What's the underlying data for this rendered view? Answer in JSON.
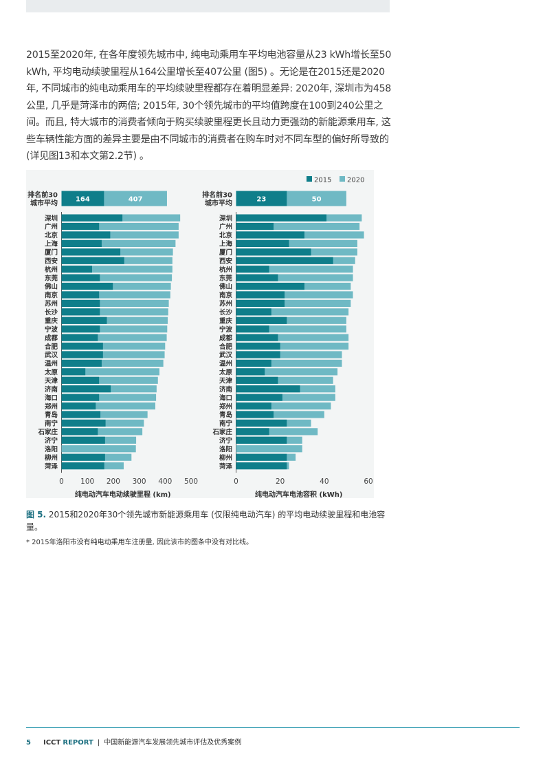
{
  "paragraph": "2015至2020年, 在各年度领先城市中, 纯电动乘用车平均电池容量从23 kWh增长至50 kWh, 平均电动续驶里程从164公里增长至407公里 (图5) 。无论是在2015还是2020年, 不同城市的纯电动乘用车的平均续驶里程都存在着明显差异: 2020年, 深圳市为458公里, 几乎是菏泽市的两倍; 2015年, 30个领先城市的平均值跨度在100到240公里之间。而且, 特大城市的消费者倾向于购买续驶里程更长且动力更强劲的新能源乘用车, 这些车辆性能方面的差异主要是由不同城市的消费者在购车时对不同车型的偏好所导致的 (详见图13和本文第2.2节) 。",
  "colors": {
    "y2015": "#0f7e8a",
    "y2020": "#6fb9c4",
    "accent": "#1b6f80"
  },
  "chart_data": [
    {
      "type": "bar",
      "orientation": "horizontal",
      "overlay": true,
      "legend": [
        "2015",
        "2020"
      ],
      "legend_position": "top-right",
      "summary_label": "排名前30城市平均",
      "summary": {
        "2015": 164,
        "2020": 407
      },
      "xlabel": "纯电动汽车电动续驶里程 (km)",
      "ticks": [
        "0",
        "100",
        "200",
        "300",
        "400",
        "500"
      ],
      "xlim": [
        0,
        500
      ],
      "categories": [
        "深圳",
        "广州",
        "北京",
        "上海",
        "厦门",
        "西安",
        "杭州",
        "东莞",
        "佛山",
        "南京",
        "苏州",
        "长沙",
        "重庆",
        "宁波",
        "成都",
        "合肥",
        "武汉",
        "温州",
        "太原",
        "天津",
        "济南",
        "海口",
        "郑州",
        "青岛",
        "南宁",
        "石家庄",
        "济宁",
        "洛阳",
        "柳州",
        "菏泽"
      ],
      "series": [
        {
          "name": "2015",
          "values": [
            235,
            145,
            188,
            155,
            227,
            242,
            118,
            148,
            198,
            145,
            148,
            148,
            175,
            148,
            140,
            160,
            160,
            155,
            92,
            145,
            190,
            145,
            132,
            150,
            170,
            140,
            168,
            null,
            168,
            165
          ]
        },
        {
          "name": "2020",
          "values": [
            458,
            452,
            452,
            440,
            430,
            428,
            428,
            426,
            422,
            420,
            414,
            412,
            410,
            408,
            406,
            400,
            398,
            393,
            378,
            372,
            367,
            365,
            362,
            332,
            318,
            312,
            288,
            287,
            270,
            240
          ]
        }
      ]
    },
    {
      "type": "bar",
      "orientation": "horizontal",
      "overlay": true,
      "legend": [
        "2015",
        "2020"
      ],
      "summary_label": "排名前30城市平均",
      "summary": {
        "2015": 23,
        "2020": 50
      },
      "xlabel": "纯电动汽车电池容积 (kWh)",
      "ticks": [
        "0",
        "20",
        "40",
        "60"
      ],
      "xlim": [
        0,
        60
      ],
      "categories": [
        "深圳",
        "广州",
        "北京",
        "上海",
        "厦门",
        "西安",
        "杭州",
        "东莞",
        "佛山",
        "南京",
        "苏州",
        "长沙",
        "重庆",
        "宁波",
        "成都",
        "合肥",
        "武汉",
        "温州",
        "太原",
        "天津",
        "济南",
        "海口",
        "郑州",
        "青岛",
        "南宁",
        "石家庄",
        "济宁",
        "洛阳",
        "柳州",
        "菏泽"
      ],
      "series": [
        {
          "name": "2015",
          "values": [
            41,
            17,
            31,
            24,
            34,
            44,
            15,
            19,
            31,
            22,
            22,
            16,
            23,
            15,
            19,
            20,
            20,
            16,
            13,
            19,
            29,
            21,
            16,
            17,
            23,
            15,
            23,
            null,
            23,
            23
          ]
        },
        {
          "name": "2020",
          "values": [
            57,
            56,
            58,
            55,
            55,
            54,
            53,
            53,
            52,
            53,
            52,
            51,
            50,
            50,
            51,
            51,
            48,
            48,
            46,
            44,
            45,
            45,
            43,
            40,
            34,
            37,
            30,
            30,
            27,
            24
          ]
        }
      ]
    }
  ],
  "caption_label": "图 5.",
  "caption_text": "2015和2020年30个领先城市新能源乘用车 (仅限纯电动汽车) 的平均电动续驶里程和电池容量。",
  "footnote": "* 2015年洛阳市没有纯电动乘用车注册量, 因此该市的图条中没有对比线。",
  "footer": {
    "page": "5",
    "org": "ICCT",
    "report": "REPORT",
    "sep": "|",
    "title": "中国新能源汽车发展领先城市评估及优秀案例"
  }
}
